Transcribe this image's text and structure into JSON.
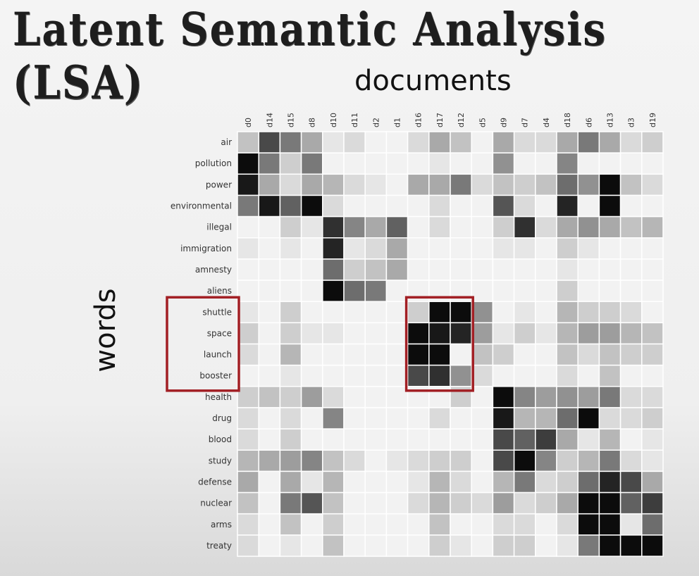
{
  "title": "Latent Semantic Analysis (LSA)",
  "chart_data": {
    "type": "heatmap",
    "xlabel": "documents",
    "ylabel": "words",
    "columns": [
      "d0",
      "d14",
      "d15",
      "d8",
      "d10",
      "d11",
      "d2",
      "d1",
      "d16",
      "d17",
      "d12",
      "d5",
      "d9",
      "d7",
      "d4",
      "d18",
      "d6",
      "d13",
      "d3",
      "d19"
    ],
    "rows": [
      "air",
      "pollution",
      "power",
      "environmental",
      "illegal",
      "immigration",
      "amnesty",
      "aliens",
      "shuttle",
      "space",
      "launch",
      "booster",
      "health",
      "drug",
      "blood",
      "study",
      "defense",
      "nuclear",
      "arms",
      "treaty"
    ],
    "value_range": [
      0,
      1
    ],
    "colors": {
      "low": "#f2f2f2",
      "high": "#000000",
      "highlight": "#a21f24"
    },
    "values": [
      [
        0.2,
        0.7,
        0.5,
        0.3,
        0.05,
        0.1,
        0,
        0,
        0.1,
        0.3,
        0.2,
        0,
        0.3,
        0.1,
        0.1,
        0.3,
        0.5,
        0.3,
        0.1,
        0.15
      ],
      [
        0.95,
        0.5,
        0.15,
        0.5,
        0,
        0,
        0,
        0,
        0,
        0.05,
        0,
        0,
        0.4,
        0,
        0,
        0.45,
        0,
        0,
        0,
        0
      ],
      [
        0.9,
        0.3,
        0.1,
        0.3,
        0.25,
        0.1,
        0.05,
        0,
        0.3,
        0.3,
        0.5,
        0.1,
        0.2,
        0.15,
        0.2,
        0.55,
        0.4,
        0.95,
        0.2,
        0.1
      ],
      [
        0.5,
        0.9,
        0.6,
        0.95,
        0.1,
        0,
        0,
        0,
        0,
        0.1,
        0,
        0,
        0.65,
        0.1,
        0,
        0.85,
        0,
        0.95,
        0,
        0
      ],
      [
        0,
        0,
        0.15,
        0.05,
        0.8,
        0.45,
        0.3,
        0.6,
        0,
        0.1,
        0,
        0,
        0.15,
        0.8,
        0.1,
        0.3,
        0.4,
        0.3,
        0.2,
        0.25
      ],
      [
        0.05,
        0,
        0.05,
        0,
        0.85,
        0.05,
        0.1,
        0.3,
        0,
        0,
        0,
        0,
        0.05,
        0.05,
        0,
        0.15,
        0.05,
        0,
        0,
        0
      ],
      [
        0,
        0,
        0,
        0,
        0.55,
        0.15,
        0.2,
        0.3,
        0,
        0,
        0,
        0,
        0,
        0,
        0,
        0.05,
        0,
        0,
        0,
        0
      ],
      [
        0,
        0,
        0,
        0,
        0.95,
        0.55,
        0.5,
        0,
        0,
        0,
        0,
        0,
        0,
        0,
        0,
        0.15,
        0,
        0,
        0,
        0
      ],
      [
        0.05,
        0,
        0.15,
        0,
        0,
        0,
        0,
        0,
        0.15,
        0.95,
        0.95,
        0.4,
        0,
        0.05,
        0,
        0.25,
        0.15,
        0.15,
        0.1,
        0
      ],
      [
        0.15,
        0,
        0.15,
        0.05,
        0.05,
        0,
        0,
        0,
        0.95,
        0.9,
        0.85,
        0.35,
        0.05,
        0.15,
        0.05,
        0.25,
        0.35,
        0.35,
        0.25,
        0.2
      ],
      [
        0.1,
        0,
        0.25,
        0,
        0,
        0,
        0,
        0,
        0.95,
        0.95,
        0,
        0.2,
        0.15,
        0,
        0,
        0.2,
        0.1,
        0.2,
        0.15,
        0.15
      ],
      [
        0,
        0,
        0.05,
        0,
        0,
        0,
        0,
        0,
        0.7,
        0.8,
        0.4,
        0.1,
        0,
        0,
        0,
        0.1,
        0,
        0.2,
        0,
        0
      ],
      [
        0.15,
        0.2,
        0.15,
        0.35,
        0.1,
        0,
        0,
        0,
        0,
        0,
        0.15,
        0,
        0.95,
        0.45,
        0.35,
        0.4,
        0.35,
        0.5,
        0.1,
        0.1
      ],
      [
        0.1,
        0,
        0.1,
        0,
        0.45,
        0,
        0,
        0,
        0,
        0.1,
        0,
        0,
        0.9,
        0.25,
        0.25,
        0.55,
        0.95,
        0.1,
        0.1,
        0.15
      ],
      [
        0.1,
        0,
        0.15,
        0,
        0,
        0,
        0,
        0,
        0,
        0,
        0,
        0,
        0.7,
        0.6,
        0.75,
        0.3,
        0.05,
        0.25,
        0,
        0.05
      ],
      [
        0.25,
        0.3,
        0.35,
        0.45,
        0.2,
        0.1,
        0,
        0.05,
        0.1,
        0.15,
        0.15,
        0,
        0.7,
        0.95,
        0.45,
        0.15,
        0.25,
        0.5,
        0.1,
        0.05
      ],
      [
        0.3,
        0,
        0.3,
        0.05,
        0.25,
        0,
        0,
        0,
        0.05,
        0.25,
        0.1,
        0,
        0.25,
        0.5,
        0.1,
        0.15,
        0.55,
        0.85,
        0.7,
        0.3
      ],
      [
        0.2,
        0,
        0.5,
        0.65,
        0.2,
        0,
        0,
        0,
        0.1,
        0.25,
        0.15,
        0.1,
        0.35,
        0.1,
        0.15,
        0.3,
        0.95,
        0.95,
        0.6,
        0.75
      ],
      [
        0.1,
        0,
        0.2,
        0,
        0.15,
        0,
        0,
        0,
        0,
        0.2,
        0,
        0,
        0.1,
        0.1,
        0,
        0.1,
        0.95,
        0.95,
        0.05,
        0.55
      ],
      [
        0.1,
        0,
        0.05,
        0,
        0.2,
        0,
        0,
        0,
        0,
        0.15,
        0.05,
        0,
        0.15,
        0.15,
        0,
        0.05,
        0.5,
        0.95,
        0.95,
        0.95
      ]
    ],
    "highlights": [
      {
        "type": "rows",
        "rows": [
          "shuttle",
          "space",
          "launch",
          "booster"
        ]
      },
      {
        "type": "block",
        "rows": [
          "shuttle",
          "space",
          "launch",
          "booster"
        ],
        "columns": [
          "d16",
          "d17",
          "d12"
        ]
      }
    ]
  }
}
